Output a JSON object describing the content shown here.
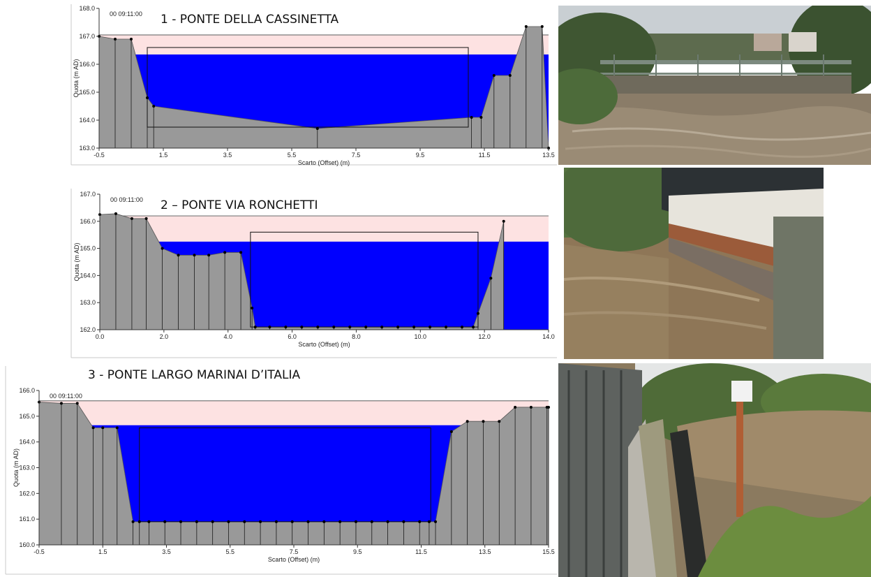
{
  "chart_data": [
    {
      "type": "area",
      "title": "1 - PONTE DELLA CASSINETTA",
      "timestamp": "00 09:11:00",
      "xlabel": "Scarto (Offset) (m)",
      "ylabel": "Quota (m AD)",
      "xlim": [
        -0.5,
        13.5
      ],
      "ylim": [
        163.0,
        168.0
      ],
      "xticks": [
        -0.5,
        1.5,
        3.5,
        5.5,
        7.5,
        9.5,
        11.5,
        13.5
      ],
      "xtick_labels": [
        "-0.5",
        "1.5",
        "3.5",
        "5.5",
        "7.5",
        "9.5",
        "11.5",
        "13.5"
      ],
      "yticks": [
        163,
        164,
        165,
        166,
        167,
        168
      ],
      "ytick_labels": [
        "163.0",
        "164.0",
        "165.0",
        "166.0",
        "167.0",
        "168.0"
      ],
      "ground_profile": {
        "x": [
          -0.5,
          0.0,
          0.5,
          1.0,
          1.2,
          6.3,
          11.1,
          11.4,
          11.8,
          12.3,
          12.8,
          13.3,
          13.5
        ],
        "y": [
          167.0,
          166.9,
          166.9,
          164.8,
          164.5,
          163.7,
          164.1,
          164.1,
          165.6,
          165.6,
          167.35,
          167.35,
          163.0
        ]
      },
      "energy_line": 167.05,
      "water_level": 166.35,
      "bridge_box": {
        "x": [
          1.0,
          11.0
        ],
        "y": [
          163.75,
          166.6
        ]
      }
    },
    {
      "type": "area",
      "title": "2 – PONTE VIA RONCHETTI",
      "timestamp": "00 09:11:00",
      "xlabel": "Scarto (Offset) (m)",
      "ylabel": "Quota (m AD)",
      "xlim": [
        0.0,
        14.0
      ],
      "ylim": [
        162.0,
        167.0
      ],
      "xticks": [
        0,
        2,
        4,
        6,
        8,
        10,
        12,
        14
      ],
      "xtick_labels": [
        "0.0",
        "2.0",
        "4.0",
        "6.0",
        "8.0",
        "10.0",
        "12.0",
        "14.0"
      ],
      "yticks": [
        162,
        163,
        164,
        165,
        166,
        167
      ],
      "ytick_labels": [
        "162.0",
        "163.0",
        "164.0",
        "165.0",
        "166.0",
        "167.0"
      ],
      "ground_profile": {
        "x": [
          0.0,
          0.5,
          1.0,
          1.45,
          1.95,
          2.45,
          2.95,
          3.4,
          3.9,
          4.4,
          4.75,
          4.85,
          5.3,
          5.8,
          6.3,
          6.8,
          7.3,
          7.8,
          8.3,
          8.8,
          9.3,
          9.8,
          10.3,
          10.8,
          11.3,
          11.65,
          11.8,
          12.2,
          12.6
        ],
        "y": [
          166.25,
          166.28,
          166.1,
          166.1,
          165.0,
          164.75,
          164.75,
          164.75,
          164.85,
          164.85,
          162.8,
          162.1,
          162.1,
          162.1,
          162.1,
          162.1,
          162.1,
          162.1,
          162.1,
          162.1,
          162.1,
          162.1,
          162.1,
          162.1,
          162.1,
          162.1,
          162.6,
          163.9,
          166.0
        ]
      },
      "energy_line": 166.2,
      "water_level": 165.25,
      "bridge_box": {
        "x": [
          4.7,
          11.8
        ],
        "y": [
          162.1,
          165.6
        ]
      }
    },
    {
      "type": "area",
      "title": "3 - PONTE LARGO MARINAI D’ITALIA",
      "timestamp": "00 09:11:00",
      "xlabel": "Scarto (Offset) (m)",
      "ylabel": "Quota (m AD)",
      "xlim": [
        -0.5,
        15.5
      ],
      "ylim": [
        160.0,
        166.0
      ],
      "xticks": [
        -0.5,
        1.5,
        3.5,
        5.5,
        7.5,
        9.5,
        11.5,
        13.5,
        15.5
      ],
      "xtick_labels": [
        "-0.5",
        "1.5",
        "3.5",
        "5.5",
        "7.5",
        "9.5",
        "11.5",
        "13.5",
        "15.5"
      ],
      "yticks": [
        160,
        161,
        162,
        163,
        164,
        165,
        166
      ],
      "ytick_labels": [
        "160.0",
        "161.0",
        "162.0",
        "163.0",
        "164.0",
        "165.0",
        "166.0"
      ],
      "ground_profile": {
        "x": [
          -0.5,
          0.2,
          0.7,
          1.2,
          1.5,
          1.95,
          2.45,
          2.65,
          2.95,
          3.45,
          3.95,
          4.45,
          4.95,
          5.45,
          5.95,
          6.45,
          6.95,
          7.45,
          7.95,
          8.45,
          8.95,
          9.45,
          9.95,
          10.45,
          10.95,
          11.45,
          11.75,
          11.95,
          12.45,
          12.95,
          13.45,
          13.95,
          14.45,
          14.95,
          15.45,
          15.5
        ],
        "y": [
          165.55,
          165.5,
          165.5,
          164.55,
          164.55,
          164.55,
          160.9,
          160.9,
          160.9,
          160.9,
          160.9,
          160.9,
          160.9,
          160.9,
          160.9,
          160.9,
          160.9,
          160.9,
          160.9,
          160.9,
          160.9,
          160.9,
          160.9,
          160.9,
          160.9,
          160.9,
          160.9,
          160.9,
          164.4,
          164.8,
          164.8,
          164.8,
          165.35,
          165.35,
          165.35,
          165.35
        ]
      },
      "energy_line": 165.6,
      "water_level": 164.65,
      "bridge_box": {
        "x": [
          2.65,
          11.8
        ],
        "y": [
          160.9,
          164.55
        ]
      }
    }
  ],
  "photos": [
    {
      "name": "photo-ponte-cassinetta",
      "scene": "river-under-footbridge"
    },
    {
      "name": "photo-ponte-via-ronchetti",
      "scene": "river-beside-bridge-with-pipe"
    },
    {
      "name": "photo-ponte-largo-marinai",
      "scene": "river-bank-with-fence-and-pipes"
    }
  ],
  "colors": {
    "ground": "#999999",
    "water": "#0000ff",
    "energy_band": "#fde2e2",
    "marker": "#000000"
  }
}
